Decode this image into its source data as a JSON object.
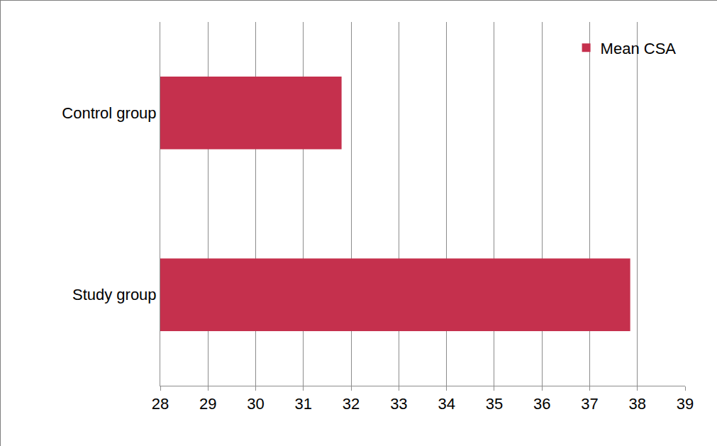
{
  "chart_data": {
    "type": "bar",
    "orientation": "horizontal",
    "categories": [
      "Control group",
      "Study group"
    ],
    "series": [
      {
        "name": "Mean CSA",
        "color": "#c5304d",
        "values": [
          31.8,
          37.85
        ]
      }
    ],
    "xlim": [
      28,
      39
    ],
    "xticks": [
      28,
      29,
      30,
      31,
      32,
      33,
      34,
      35,
      36,
      37,
      38,
      39
    ],
    "grid": true,
    "legend": "upper right"
  }
}
